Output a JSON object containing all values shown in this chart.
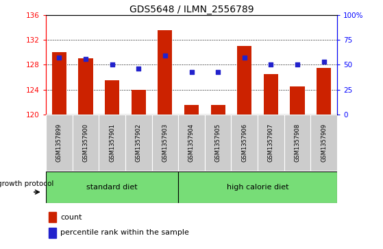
{
  "title": "GDS5648 / ILMN_2556789",
  "samples": [
    "GSM1357899",
    "GSM1357900",
    "GSM1357901",
    "GSM1357902",
    "GSM1357903",
    "GSM1357904",
    "GSM1357905",
    "GSM1357906",
    "GSM1357907",
    "GSM1357908",
    "GSM1357909"
  ],
  "counts": [
    130.0,
    129.0,
    125.5,
    124.0,
    133.5,
    121.5,
    121.5,
    131.0,
    126.5,
    124.5,
    127.5
  ],
  "percentiles": [
    57,
    56,
    50,
    46,
    59,
    43,
    43,
    57,
    50,
    50,
    53
  ],
  "y_min": 120,
  "y_max": 136,
  "y_ticks": [
    120,
    124,
    128,
    132,
    136
  ],
  "right_y_ticks": [
    0,
    25,
    50,
    75,
    100
  ],
  "bar_color": "#cc2200",
  "dot_color": "#2222cc",
  "standard_diet_count": 5,
  "high_calorie_diet_count": 6,
  "group_bg_color": "#77dd77",
  "sample_bg_color": "#cccccc",
  "legend_bar_label": "count",
  "legend_dot_label": "percentile rank within the sample",
  "growth_protocol_label": "growth protocol"
}
